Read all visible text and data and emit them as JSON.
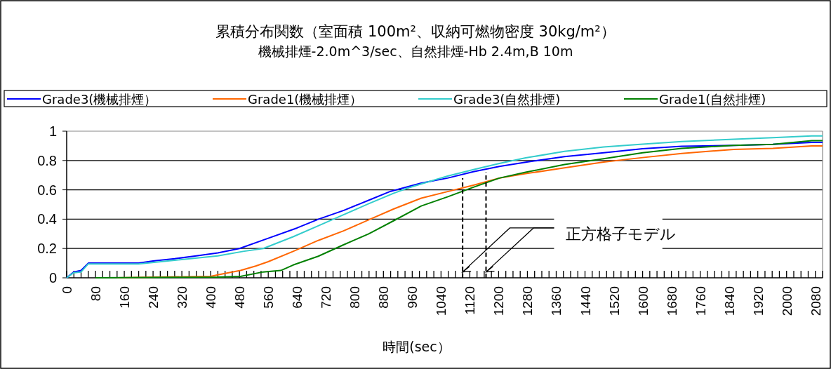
{
  "chart_data": {
    "type": "line",
    "title": "累積分布関数（室面積 100m²、収納可燃物密度 30kg/m²）",
    "subtitle": "機械排煙-2.0m^3/sec、自然排煙-Hb 2.4m,B 10m",
    "xlabel": "時間(sec）",
    "legend": "top",
    "grid": "y",
    "line_style": "solid",
    "marker": "none",
    "xlim": [
      0,
      2100
    ],
    "ylim": [
      0,
      1
    ],
    "yticks": [
      0,
      0.2,
      0.4,
      0.6,
      0.8,
      1
    ],
    "xticks": [
      0,
      {
        "value": 20,
        "label": null
      },
      {
        "value": 40,
        "label": null
      },
      {
        "value": 60,
        "label": null
      },
      80,
      {
        "value": 100,
        "label": null
      },
      {
        "value": 120,
        "label": null
      },
      {
        "value": 140,
        "label": null
      },
      160,
      {
        "value": 180,
        "label": null
      },
      {
        "value": 200,
        "label": null
      },
      {
        "value": 220,
        "label": null
      },
      240,
      {
        "value": 260,
        "label": null
      },
      {
        "value": 280,
        "label": null
      },
      {
        "value": 300,
        "label": null
      },
      320,
      {
        "value": 340,
        "label": null
      },
      {
        "value": 360,
        "label": null
      },
      {
        "value": 380,
        "label": null
      },
      400,
      {
        "value": 420,
        "label": null
      },
      {
        "value": 440,
        "label": null
      },
      {
        "value": 460,
        "label": null
      },
      480,
      {
        "value": 500,
        "label": null
      },
      {
        "value": 520,
        "label": null
      },
      {
        "value": 540,
        "label": null
      },
      560,
      {
        "value": 580,
        "label": null
      },
      {
        "value": 600,
        "label": null
      },
      {
        "value": 620,
        "label": null
      },
      640,
      {
        "value": 660,
        "label": null
      },
      {
        "value": 680,
        "label": null
      },
      {
        "value": 700,
        "label": null
      },
      720,
      {
        "value": 740,
        "label": null
      },
      {
        "value": 760,
        "label": null
      },
      {
        "value": 780,
        "label": null
      },
      800,
      {
        "value": 820,
        "label": null
      },
      {
        "value": 840,
        "label": null
      },
      {
        "value": 860,
        "label": null
      },
      880,
      {
        "value": 900,
        "label": null
      },
      {
        "value": 920,
        "label": null
      },
      {
        "value": 940,
        "label": null
      },
      960,
      {
        "value": 980,
        "label": null
      },
      {
        "value": 1000,
        "label": null
      },
      {
        "value": 1020,
        "label": null
      },
      1040,
      {
        "value": 1060,
        "label": null
      },
      {
        "value": 1080,
        "label": null
      },
      {
        "value": 1100,
        "label": null
      },
      1120,
      {
        "value": 1140,
        "label": null
      },
      {
        "value": 1160,
        "label": null
      },
      {
        "value": 1180,
        "label": null
      },
      1200,
      {
        "value": 1220,
        "label": null
      },
      {
        "value": 1240,
        "label": null
      },
      {
        "value": 1260,
        "label": null
      },
      1280,
      {
        "value": 1300,
        "label": null
      },
      {
        "value": 1320,
        "label": null
      },
      {
        "value": 1340,
        "label": null
      },
      1360,
      {
        "value": 1380,
        "label": null
      },
      {
        "value": 1400,
        "label": null
      },
      {
        "value": 1420,
        "label": null
      },
      1440,
      {
        "value": 1460,
        "label": null
      },
      {
        "value": 1480,
        "label": null
      },
      {
        "value": 1500,
        "label": null
      },
      1520,
      {
        "value": 1540,
        "label": null
      },
      {
        "value": 1560,
        "label": null
      },
      {
        "value": 1580,
        "label": null
      },
      1600,
      {
        "value": 1620,
        "label": null
      },
      {
        "value": 1640,
        "label": null
      },
      {
        "value": 1660,
        "label": null
      },
      1680,
      {
        "value": 1700,
        "label": null
      },
      {
        "value": 1720,
        "label": null
      },
      {
        "value": 1740,
        "label": null
      },
      1760,
      {
        "value": 1780,
        "label": null
      },
      {
        "value": 1800,
        "label": null
      },
      {
        "value": 1820,
        "label": null
      },
      1840,
      {
        "value": 1860,
        "label": null
      },
      {
        "value": 1880,
        "label": null
      },
      {
        "value": 1900,
        "label": null
      },
      1920,
      {
        "value": 1940,
        "label": null
      },
      {
        "value": 1960,
        "label": null
      },
      {
        "value": 1980,
        "label": null
      },
      2000,
      {
        "value": 2020,
        "label": null
      },
      {
        "value": 2040,
        "label": null
      },
      {
        "value": 2060,
        "label": null
      },
      2080,
      {
        "value": 2100,
        "label": null
      }
    ],
    "series": [
      {
        "name": "Grade3(機械排煙）",
        "color": "#0000ff",
        "x": [
          0,
          20,
          40,
          60,
          200,
          240,
          300,
          360,
          420,
          480,
          560,
          640,
          700,
          770,
          840,
          900,
          985,
          1058,
          1130,
          1202,
          1275,
          1383,
          1492,
          1600,
          1709,
          1853,
          1962,
          2070,
          2100
        ],
        "values": [
          0,
          0.04,
          0.05,
          0.1,
          0.1,
          0.115,
          0.13,
          0.15,
          0.17,
          0.2,
          0.27,
          0.34,
          0.4,
          0.46,
          0.53,
          0.59,
          0.646,
          0.68,
          0.724,
          0.76,
          0.788,
          0.827,
          0.853,
          0.88,
          0.897,
          0.903,
          0.91,
          0.924,
          0.924
        ]
      },
      {
        "name": "Grade1(機械排煙）",
        "color": "#ff6600",
        "x": [
          140,
          400,
          420,
          483,
          525,
          560,
          629,
          699,
          769,
          839,
          909,
          985,
          1058,
          1130,
          1202,
          1275,
          1383,
          1492,
          1600,
          1709,
          1853,
          1962,
          2070,
          2100
        ],
        "values": [
          0,
          0.01,
          0.02,
          0.05,
          0.08,
          0.11,
          0.18,
          0.255,
          0.32,
          0.395,
          0.47,
          0.543,
          0.588,
          0.632,
          0.68,
          0.71,
          0.75,
          0.79,
          0.82,
          0.848,
          0.876,
          0.883,
          0.9,
          0.9
        ]
      },
      {
        "name": "Grade3(自然排煙)",
        "color": "#33cccc",
        "x": [
          0,
          20,
          40,
          60,
          200,
          300,
          420,
          490,
          546,
          629,
          699,
          769,
          839,
          909,
          951,
          1058,
          1130,
          1202,
          1275,
          1383,
          1492,
          1600,
          1709,
          1853,
          1962,
          2070,
          2100
        ],
        "values": [
          0,
          0.035,
          0.04,
          0.095,
          0.095,
          0.12,
          0.15,
          0.18,
          0.2,
          0.28,
          0.355,
          0.43,
          0.505,
          0.577,
          0.615,
          0.694,
          0.738,
          0.78,
          0.818,
          0.862,
          0.892,
          0.911,
          0.93,
          0.945,
          0.956,
          0.968,
          0.968
        ]
      },
      {
        "name": "Grade1(自然排煙)",
        "color": "#008000",
        "x": [
          80,
          420,
          483,
          546,
          595,
          629,
          699,
          769,
          839,
          909,
          985,
          1058,
          1130,
          1202,
          1275,
          1383,
          1492,
          1600,
          1709,
          1853,
          1962,
          2070,
          2100
        ],
        "values": [
          0,
          0.005,
          0.01,
          0.04,
          0.05,
          0.087,
          0.147,
          0.225,
          0.3,
          0.39,
          0.49,
          0.552,
          0.618,
          0.68,
          0.72,
          0.773,
          0.812,
          0.853,
          0.883,
          0.903,
          0.91,
          0.935,
          0.935
        ]
      },
      {
        "type": "line",
        "line_style": "dashed",
        "color": "#000000",
        "x": [
          1100,
          1100
        ],
        "values": [
          0,
          0.68
        ]
      },
      {
        "type": "line",
        "line_style": "dashed",
        "color": "#000000",
        "x": [
          1165,
          1165
        ],
        "values": [
          0,
          0.72
        ]
      }
    ],
    "annotations": [
      {
        "text": "正方格子モデル",
        "x": 1100,
        "y": 0.04
      }
    ]
  }
}
